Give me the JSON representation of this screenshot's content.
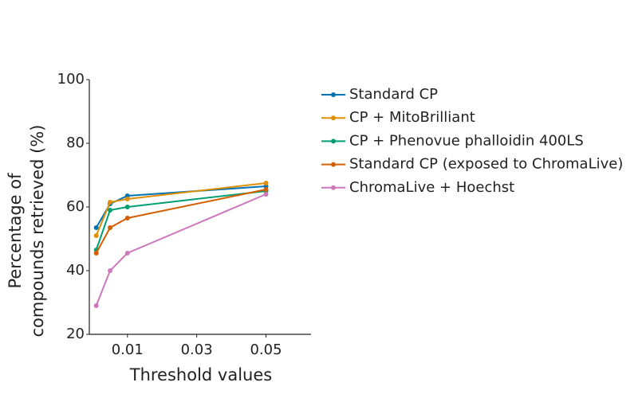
{
  "chart_data": {
    "type": "line",
    "xlabel": "Threshold values",
    "ylabel": [
      "Percentage of",
      "compounds retrieved (%)"
    ],
    "x": [
      0.001,
      0.005,
      0.01,
      0.05
    ],
    "xlim": [
      -0.001,
      0.063
    ],
    "xticks": [
      0.01,
      0.03,
      0.05
    ],
    "ylim": [
      20,
      100
    ],
    "yticks": [
      20,
      40,
      60,
      80,
      100
    ],
    "series": [
      {
        "name": "Standard CP",
        "color": "#0173b2",
        "values": [
          53.5,
          61,
          63.5,
          66.5
        ]
      },
      {
        "name": "CP + MitoBrilliant",
        "color": "#de8f05",
        "values": [
          51,
          61.5,
          62.5,
          67.5
        ]
      },
      {
        "name": "CP + Phenovue phalloidin 400LS",
        "color": "#029e73",
        "values": [
          46.5,
          59,
          60,
          65
        ]
      },
      {
        "name": "Standard CP (exposed to ChromaLive)",
        "color": "#d55e00",
        "values": [
          45.5,
          53.5,
          56.5,
          65.5
        ]
      },
      {
        "name": "ChromaLive + Hoechst",
        "color": "#cc78bc",
        "values": [
          29,
          40,
          45.5,
          64
        ]
      }
    ]
  }
}
